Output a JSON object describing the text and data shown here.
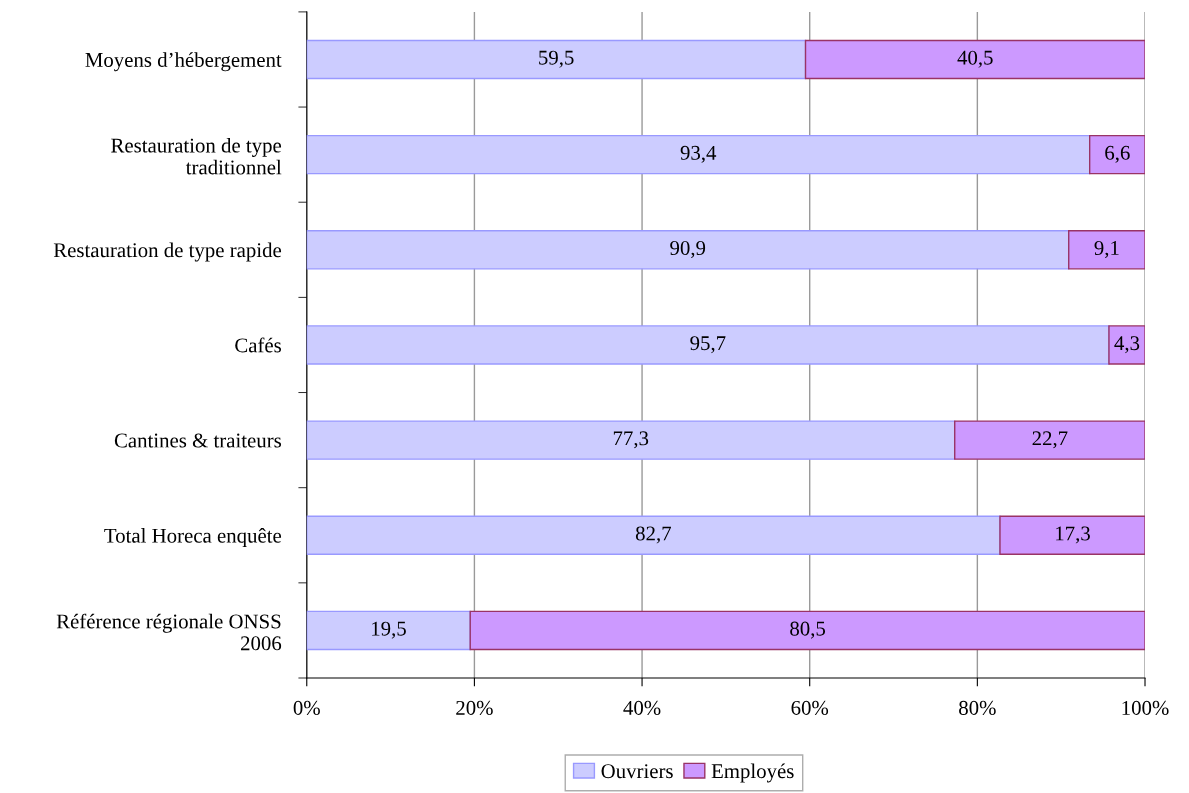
{
  "chart_data": {
    "type": "bar",
    "orientation": "horizontal",
    "stacked": true,
    "categories": [
      "Moyens d’hébergement",
      "Restauration de type\ntraditionnel",
      "Restauration de type rapide",
      "Cafés",
      "Cantines & traiteurs",
      "Total Horeca enquête",
      "Référence régionale ONSS\n2006"
    ],
    "series": [
      {
        "name": "Ouvriers",
        "color": "#ccccff",
        "values": [
          59.5,
          93.4,
          90.9,
          95.7,
          77.3,
          82.7,
          19.5
        ],
        "value_labels": [
          "59,5",
          "93,4",
          "90,9",
          "95,7",
          "77,3",
          "82,7",
          "19,5"
        ]
      },
      {
        "name": "Employés",
        "color": "#cc99ff",
        "values": [
          40.5,
          6.6,
          9.1,
          4.3,
          22.7,
          17.3,
          80.5
        ],
        "value_labels": [
          "40,5",
          "6,6",
          "9,1",
          "4,3",
          "22,7",
          "17,3",
          "80,5"
        ]
      }
    ],
    "xlim": [
      0,
      100
    ],
    "xticks": [
      {
        "value": 0,
        "label": "0%"
      },
      {
        "value": 20,
        "label": "20%"
      },
      {
        "value": 40,
        "label": "40%"
      },
      {
        "value": 60,
        "label": "60%"
      },
      {
        "value": 80,
        "label": "80%"
      },
      {
        "value": 100,
        "label": "100%"
      }
    ],
    "grid": "x",
    "legend": "bottom"
  }
}
